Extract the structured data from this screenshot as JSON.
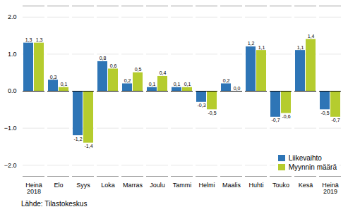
{
  "chart_data": {
    "type": "bar",
    "categories": [
      "Heinä\n2018",
      "Elo",
      "Syys",
      "Loka",
      "Marras",
      "Joulu",
      "Tammi",
      "Helmi",
      "Maalis",
      "Huhti",
      "Touko",
      "Kesä",
      "Heinä\n2019"
    ],
    "series": [
      {
        "name": "Liikevaihto",
        "color": "#2e75b6",
        "values": [
          1.3,
          0.3,
          -1.2,
          0.8,
          0.2,
          0.1,
          0.1,
          -0.3,
          0.2,
          1.2,
          -0.7,
          1.1,
          -0.5
        ],
        "value_labels": [
          "1,3",
          "0,3",
          "-1,2",
          "0,8",
          "0,2",
          "0,1",
          "0,1",
          "-0,3",
          "0,2",
          "1,2",
          "-0,7",
          "1,1",
          "-0,5"
        ]
      },
      {
        "name": "Myynnin määrä",
        "color": "#b5cc2e",
        "values": [
          1.3,
          0.1,
          -1.4,
          0.6,
          0.5,
          0.4,
          0.1,
          -0.5,
          0.0,
          1.1,
          -0.6,
          1.4,
          -0.7
        ],
        "value_labels": [
          "1,3",
          "0,1",
          "-1,4",
          "0,6",
          "0,5",
          "0,4",
          "0,1",
          "-0,5",
          "0,0",
          "1,1",
          "-0,6",
          "1,4",
          "-0,7"
        ]
      }
    ],
    "ylim": [
      -2.3,
      2.3
    ],
    "yticks": [
      -2,
      -1,
      0,
      1,
      2
    ],
    "grid": true,
    "legend": "lower right",
    "data_labels": true,
    "caption": "Lähde: Tilastokeskus"
  }
}
